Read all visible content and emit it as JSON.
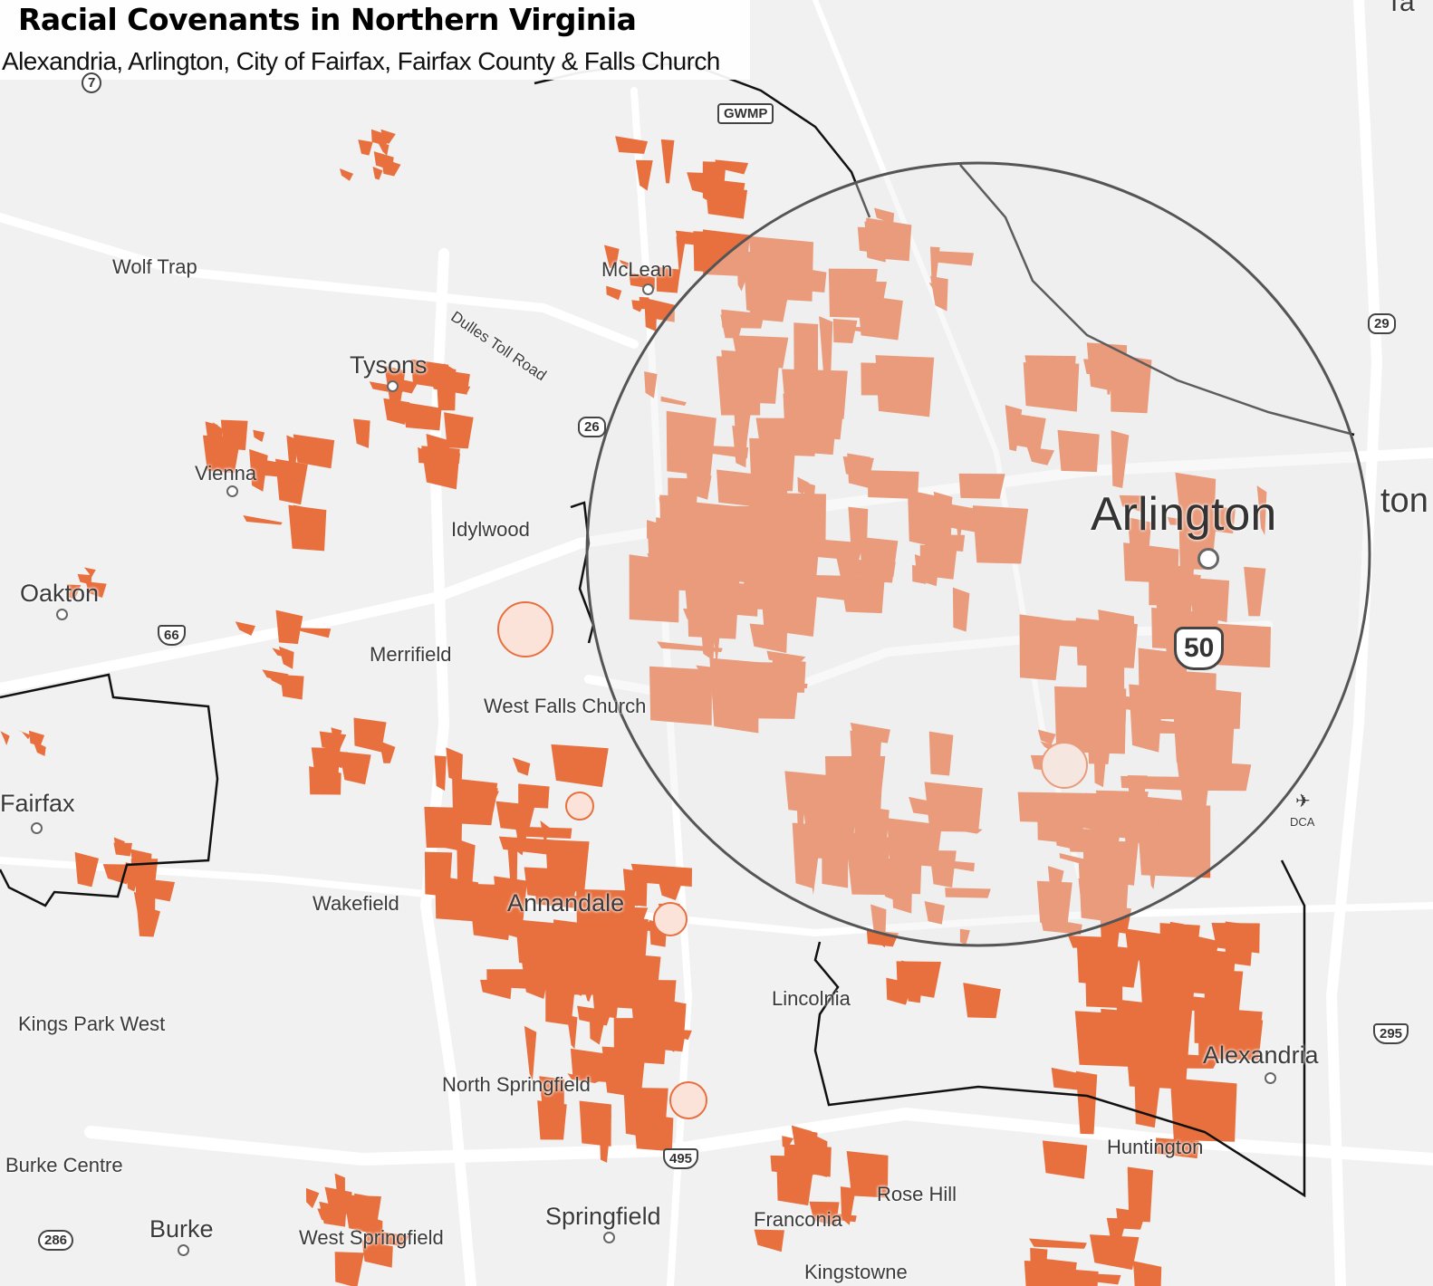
{
  "header": {
    "title": "Racial Covenants in Northern Virginia",
    "subtitle": "Alexandria, Arlington, City of Fairfax, Fairfax County & Falls Church"
  },
  "colors": {
    "covenant_fill": "#e8703f",
    "covenant_light": "#fbe3da",
    "background": "#f1f1f1",
    "boundary": "#111111",
    "magnifier_ring": "#555555"
  },
  "places": {
    "wolf_trap": "Wolf Trap",
    "mclean": "McLean",
    "tysons": "Tysons",
    "dulles": "Dulles Toll Road",
    "vienna": "Vienna",
    "idylwood": "Idylwood",
    "oakton": "Oakton",
    "merrifield": "Merrifield",
    "west_falls_church": "West Falls Church",
    "fairfax": "Fairfax",
    "wakefield": "Wakefield",
    "annandale": "Annandale",
    "lincolnia": "Lincolnia",
    "kings_park_west": "Kings Park West",
    "north_springfield": "North Springfield",
    "burke_centre": "Burke Centre",
    "burke": "Burke",
    "west_springfield": "West Springfield",
    "springfield": "Springfield",
    "franconia": "Franconia",
    "rose_hill": "Rose Hill",
    "kingstowne": "Kingstowne",
    "huntington": "Huntington",
    "alexandria": "Alexandria",
    "arlington": "Arlington",
    "washington": "ton",
    "takoma": "Ta",
    "dca": "DCA"
  },
  "shields": {
    "va7": "7",
    "gwmp": "GWMP",
    "us29": "29",
    "va267": "26",
    "i66": "66",
    "us50": "50",
    "i495": "495",
    "va286": "286",
    "i295": "295"
  },
  "icons": {
    "airport": "airplane-icon",
    "place": "place-dot-icon"
  }
}
